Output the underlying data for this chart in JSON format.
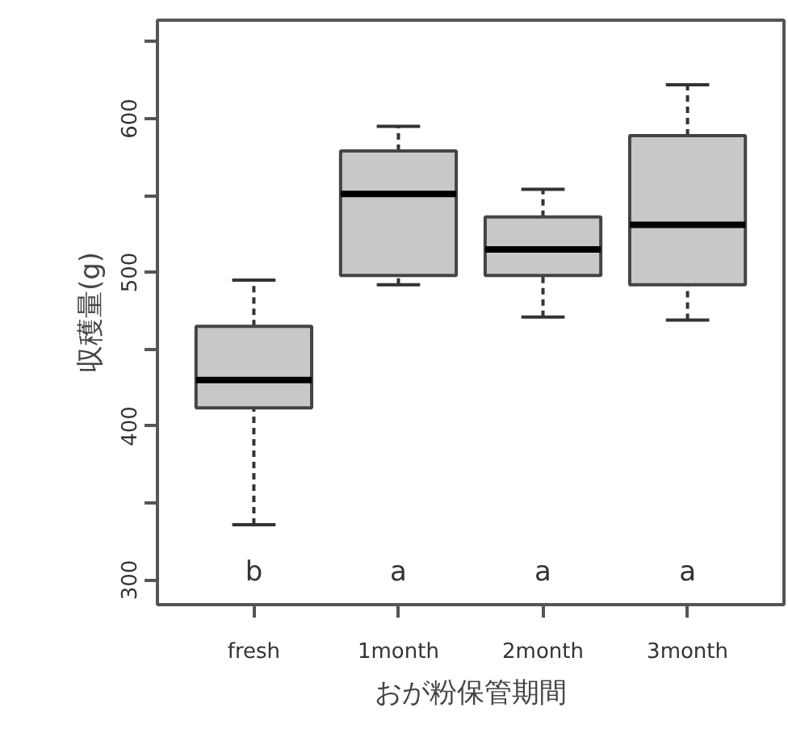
{
  "chart_data": {
    "type": "box",
    "xlabel": "おが粉保管期間",
    "ylabel": "収穫量(g)",
    "categories": [
      "fresh",
      "1month",
      "2month",
      "3month"
    ],
    "color": "#c8c8c8",
    "boxes": [
      {
        "low": 336,
        "q1": 412,
        "median": 430,
        "q3": 465,
        "high": 495
      },
      {
        "low": 492,
        "q1": 498,
        "median": 551,
        "q3": 579,
        "high": 595
      },
      {
        "low": 471,
        "q1": 498,
        "median": 515,
        "q3": 536,
        "high": 554
      },
      {
        "low": 469,
        "q1": 492,
        "median": 531,
        "q3": 589,
        "high": 622
      }
    ],
    "ylim": [
      284,
      664
    ],
    "yticks": [
      300,
      {
        "value": 350,
        "label": null
      },
      400,
      {
        "value": 450,
        "label": null
      },
      500,
      {
        "value": 550,
        "label": null
      },
      600,
      {
        "value": 650,
        "label": null
      }
    ],
    "grid": false,
    "line_style": "dashed",
    "annotations": [
      "b",
      "a",
      "a",
      "a"
    ]
  }
}
